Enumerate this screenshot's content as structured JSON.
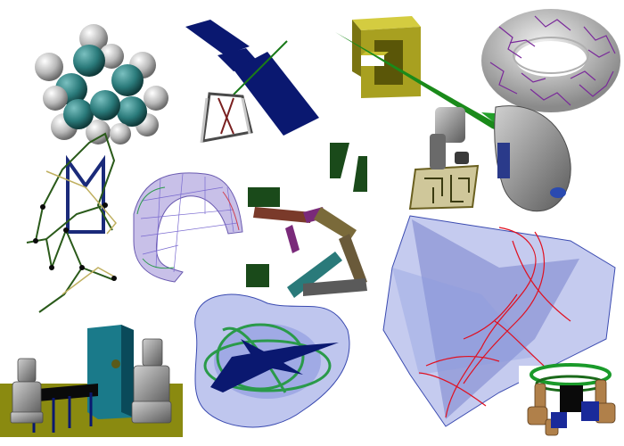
{
  "collage": {
    "panels": [
      {
        "name": "molecule-model"
      },
      {
        "name": "flat-panel-robot"
      },
      {
        "name": "block-with-beam"
      },
      {
        "name": "torus-path-network"
      },
      {
        "name": "line-linkage-diagram"
      },
      {
        "name": "folding-surface-mesh"
      },
      {
        "name": "planar-linkage-arm"
      },
      {
        "name": "robot-arm-maze"
      },
      {
        "name": "translucent-volume-with-red-paths"
      },
      {
        "name": "humanoid-robots-table"
      },
      {
        "name": "blue-blob-with-green-loops"
      },
      {
        "name": "wooden-hands-grasping"
      }
    ]
  },
  "colors": {
    "navy": "#0a1870",
    "olive": "#a8a020",
    "green": "#1a6a1a",
    "teal": "#2a7a7a",
    "red": "#e01020",
    "purple": "#6a3aa0",
    "gray": "#9a9a9a"
  }
}
